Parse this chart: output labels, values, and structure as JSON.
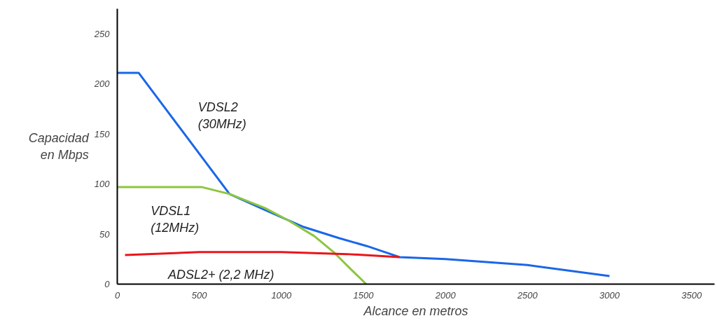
{
  "chart_data": {
    "type": "line",
    "xlabel": "Alcance en metros",
    "ylabel": "Capacidad\nen Mbps",
    "xlim": [
      0,
      3640
    ],
    "ylim": [
      0,
      275
    ],
    "xticks": [
      0,
      500,
      1000,
      1500,
      2000,
      2500,
      3000,
      3500
    ],
    "yticks": [
      0,
      50,
      100,
      150,
      200,
      250
    ],
    "grid": false,
    "marker": "none",
    "line_style": "solid",
    "series": [
      {
        "name": "VDSL2\n(30MHz)",
        "color": "#1a66e8",
        "x": [
          0,
          130,
          684,
          900,
          1137,
          1350,
          1521,
          1720,
          2000,
          2500,
          3000
        ],
        "values": [
          211,
          211,
          90,
          74,
          57,
          46,
          38,
          27,
          25,
          19,
          8
        ]
      },
      {
        "name": "VDSL1\n(12MHz)",
        "color": "#8cc63f",
        "x": [
          0,
          513,
          684,
          900,
          1038,
          1200,
          1325,
          1423,
          1517
        ],
        "values": [
          97,
          97,
          90,
          76,
          64,
          48,
          31,
          15,
          0
        ]
      },
      {
        "name": "ADSL2+ (2,2 MHz)",
        "color": "#e8161b",
        "x": [
          47,
          500,
          1000,
          1400,
          1720
        ],
        "values": [
          29,
          32,
          32,
          30,
          27
        ]
      }
    ]
  }
}
